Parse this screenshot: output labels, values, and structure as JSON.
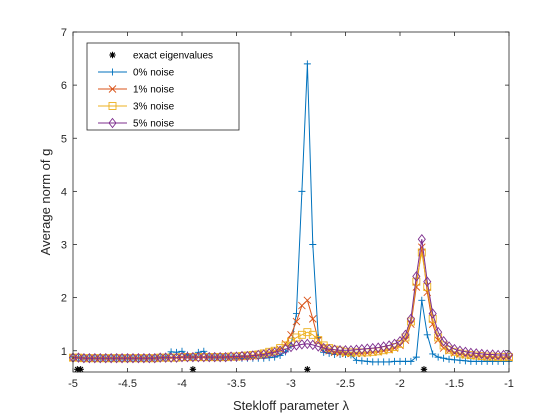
{
  "chart_data": {
    "type": "line",
    "xlabel": "Stekloff parameter λ",
    "ylabel": "Average norm of g",
    "xlim": [
      -5,
      -1
    ],
    "ylim": [
      0.6,
      7
    ],
    "x_ticks": [
      -5,
      -4.5,
      -4,
      -3.5,
      -3,
      -2.5,
      -2,
      -1.5,
      -1
    ],
    "x_tick_labels": [
      "-5",
      "-4.5",
      "-4",
      "-3.5",
      "-3",
      "-2.5",
      "-2",
      "-1.5",
      "-1"
    ],
    "y_ticks": [
      1,
      2,
      3,
      4,
      5,
      6,
      7
    ],
    "y_tick_labels": [
      "1",
      "2",
      "3",
      "4",
      "5",
      "6",
      "7"
    ],
    "grid": false,
    "legend_position": "top-left",
    "exact_eigenvalues": {
      "name": "exact eigenvalues",
      "x": [
        -4.96,
        -4.93,
        -3.9,
        -2.85,
        -1.78
      ],
      "y": [
        0.65,
        0.65,
        0.65,
        0.65,
        0.65
      ],
      "color": "#000000",
      "marker": "asterisk"
    },
    "x": [
      -5.0,
      -4.95,
      -4.9,
      -4.85,
      -4.8,
      -4.75,
      -4.7,
      -4.65,
      -4.6,
      -4.55,
      -4.5,
      -4.45,
      -4.4,
      -4.35,
      -4.3,
      -4.25,
      -4.2,
      -4.15,
      -4.1,
      -4.05,
      -4.0,
      -3.95,
      -3.9,
      -3.85,
      -3.8,
      -3.75,
      -3.7,
      -3.65,
      -3.6,
      -3.55,
      -3.5,
      -3.45,
      -3.4,
      -3.35,
      -3.3,
      -3.25,
      -3.2,
      -3.15,
      -3.1,
      -3.05,
      -3.0,
      -2.95,
      -2.9,
      -2.85,
      -2.8,
      -2.75,
      -2.7,
      -2.65,
      -2.6,
      -2.55,
      -2.5,
      -2.45,
      -2.4,
      -2.35,
      -2.3,
      -2.25,
      -2.2,
      -2.15,
      -2.1,
      -2.05,
      -2.0,
      -1.95,
      -1.9,
      -1.85,
      -1.8,
      -1.75,
      -1.7,
      -1.65,
      -1.6,
      -1.55,
      -1.5,
      -1.45,
      -1.4,
      -1.35,
      -1.3,
      -1.25,
      -1.2,
      -1.15,
      -1.1,
      -1.05,
      -1.0
    ],
    "series": [
      {
        "name": "0% noise",
        "color": "#0072BD",
        "marker": "plus",
        "values": [
          0.88,
          0.87,
          0.87,
          0.86,
          0.86,
          0.86,
          0.86,
          0.86,
          0.86,
          0.86,
          0.86,
          0.86,
          0.86,
          0.86,
          0.87,
          0.87,
          0.88,
          0.88,
          0.98,
          0.97,
          0.99,
          0.92,
          0.87,
          0.97,
          0.99,
          0.88,
          0.87,
          0.87,
          0.87,
          0.87,
          0.86,
          0.86,
          0.86,
          0.86,
          0.86,
          0.86,
          0.87,
          0.88,
          0.91,
          0.98,
          1.1,
          1.7,
          4.0,
          6.4,
          3.0,
          1.25,
          0.97,
          0.95,
          0.93,
          0.93,
          0.93,
          0.92,
          0.82,
          0.81,
          0.8,
          0.79,
          0.79,
          0.79,
          0.79,
          0.8,
          0.8,
          0.8,
          0.8,
          0.88,
          1.95,
          1.3,
          0.94,
          0.88,
          0.86,
          0.84,
          0.83,
          0.82,
          0.81,
          0.8,
          0.8,
          0.8,
          0.8,
          0.8,
          0.8,
          0.8,
          0.8
        ]
      },
      {
        "name": "1% noise",
        "color": "#D95319",
        "marker": "cross",
        "values": [
          0.87,
          0.87,
          0.86,
          0.86,
          0.86,
          0.86,
          0.86,
          0.86,
          0.86,
          0.86,
          0.86,
          0.86,
          0.86,
          0.86,
          0.86,
          0.86,
          0.87,
          0.87,
          0.87,
          0.87,
          0.88,
          0.88,
          0.88,
          0.88,
          0.88,
          0.88,
          0.88,
          0.88,
          0.88,
          0.88,
          0.88,
          0.89,
          0.89,
          0.9,
          0.92,
          0.93,
          0.96,
          0.98,
          1.03,
          1.13,
          1.3,
          1.55,
          1.85,
          1.95,
          1.6,
          1.2,
          1.05,
          1.0,
          0.97,
          0.96,
          0.95,
          0.95,
          0.95,
          0.95,
          0.96,
          0.97,
          0.98,
          1.0,
          1.02,
          1.05,
          1.1,
          1.2,
          1.5,
          2.2,
          2.95,
          2.1,
          1.5,
          1.2,
          1.05,
          1.0,
          0.96,
          0.94,
          0.92,
          0.91,
          0.9,
          0.89,
          0.88,
          0.88,
          0.87,
          0.87,
          0.87
        ]
      },
      {
        "name": "3% noise",
        "color": "#EDB120",
        "marker": "square",
        "values": [
          0.87,
          0.87,
          0.86,
          0.86,
          0.86,
          0.86,
          0.86,
          0.86,
          0.86,
          0.86,
          0.86,
          0.86,
          0.86,
          0.86,
          0.86,
          0.86,
          0.87,
          0.87,
          0.87,
          0.87,
          0.88,
          0.88,
          0.88,
          0.88,
          0.88,
          0.88,
          0.88,
          0.88,
          0.88,
          0.89,
          0.89,
          0.9,
          0.91,
          0.92,
          0.93,
          0.95,
          0.98,
          1.0,
          1.05,
          1.1,
          1.17,
          1.25,
          1.3,
          1.35,
          1.3,
          1.2,
          1.1,
          1.05,
          1.02,
          1.0,
          0.98,
          0.97,
          0.97,
          0.97,
          0.97,
          0.98,
          0.99,
          1.01,
          1.03,
          1.07,
          1.13,
          1.25,
          1.55,
          2.3,
          2.85,
          2.2,
          1.6,
          1.25,
          1.1,
          1.02,
          0.98,
          0.95,
          0.93,
          0.92,
          0.91,
          0.9,
          0.89,
          0.89,
          0.88,
          0.88,
          0.88
        ]
      },
      {
        "name": "5% noise",
        "color": "#7E2F8E",
        "marker": "diamond",
        "values": [
          0.87,
          0.87,
          0.86,
          0.86,
          0.86,
          0.86,
          0.86,
          0.86,
          0.86,
          0.86,
          0.86,
          0.86,
          0.86,
          0.86,
          0.86,
          0.86,
          0.87,
          0.87,
          0.87,
          0.87,
          0.88,
          0.88,
          0.88,
          0.88,
          0.88,
          0.88,
          0.88,
          0.88,
          0.88,
          0.89,
          0.89,
          0.9,
          0.9,
          0.91,
          0.92,
          0.93,
          0.95,
          0.97,
          1.0,
          1.03,
          1.07,
          1.1,
          1.12,
          1.13,
          1.11,
          1.08,
          1.05,
          1.03,
          1.02,
          1.01,
          1.01,
          1.01,
          1.02,
          1.03,
          1.04,
          1.05,
          1.06,
          1.08,
          1.1,
          1.13,
          1.18,
          1.3,
          1.6,
          2.4,
          3.1,
          2.3,
          1.7,
          1.35,
          1.18,
          1.08,
          1.03,
          1.0,
          0.98,
          0.96,
          0.95,
          0.94,
          0.93,
          0.93,
          0.92,
          0.92,
          0.92
        ]
      }
    ]
  }
}
